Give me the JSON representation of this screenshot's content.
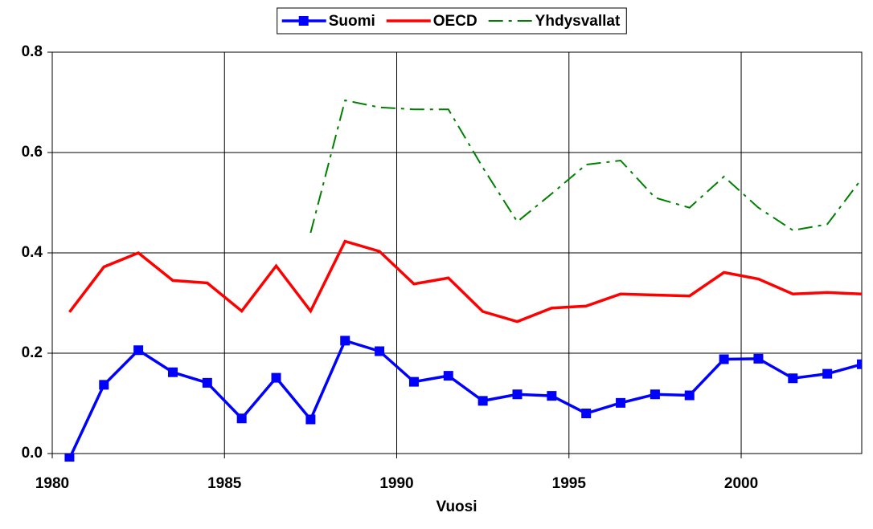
{
  "chart_data": {
    "type": "line",
    "x_label": "Vuosi",
    "x": [
      1980.5,
      1981.5,
      1982.5,
      1983.5,
      1984.5,
      1985.5,
      1986.5,
      1987.5,
      1988.5,
      1989.5,
      1990.5,
      1991.5,
      1992.5,
      1993.5,
      1994.5,
      1995.5,
      1996.5,
      1997.5,
      1998.5,
      1999.5,
      2000.5,
      2001.5,
      2002.5,
      2003.5
    ],
    "series": [
      {
        "name": "Suomi",
        "color": "#0000ff",
        "marker": "square",
        "values": [
          -0.01,
          0.137,
          0.206,
          0.162,
          0.141,
          0.07,
          0.151,
          0.068,
          0.225,
          0.204,
          0.143,
          0.155,
          0.105,
          0.118,
          0.115,
          0.08,
          0.101,
          0.118,
          0.116,
          0.188,
          0.189,
          0.15,
          0.159,
          0.178
        ]
      },
      {
        "name": "OECD",
        "color": "#ff0000",
        "values": [
          0.282,
          0.372,
          0.4,
          0.345,
          0.34,
          0.284,
          0.374,
          0.284,
          0.423,
          0.403,
          0.338,
          0.35,
          0.283,
          0.263,
          0.29,
          0.294,
          0.318,
          0.316,
          0.314,
          0.361,
          0.348,
          0.318,
          0.321,
          0.318
        ]
      },
      {
        "name": "Yhdysvallat",
        "color": "#008000",
        "dash": "dashdot",
        "values": [
          null,
          null,
          null,
          null,
          null,
          null,
          null,
          0.44,
          0.704,
          0.69,
          0.686,
          0.686,
          0.57,
          0.462,
          0.518,
          0.576,
          0.584,
          0.51,
          0.49,
          0.552,
          0.49,
          0.445,
          0.457,
          0.548
        ]
      }
    ],
    "xlim": [
      1980,
      2003.5
    ],
    "xticks": [
      1980,
      1985,
      1990,
      1995,
      2000
    ],
    "ylim": [
      0,
      0.8
    ],
    "yticks": [
      {
        "value": 0,
        "label": "0.0"
      },
      0.2,
      0.4,
      0.6,
      0.8
    ],
    "grid": true,
    "legend": "top"
  }
}
